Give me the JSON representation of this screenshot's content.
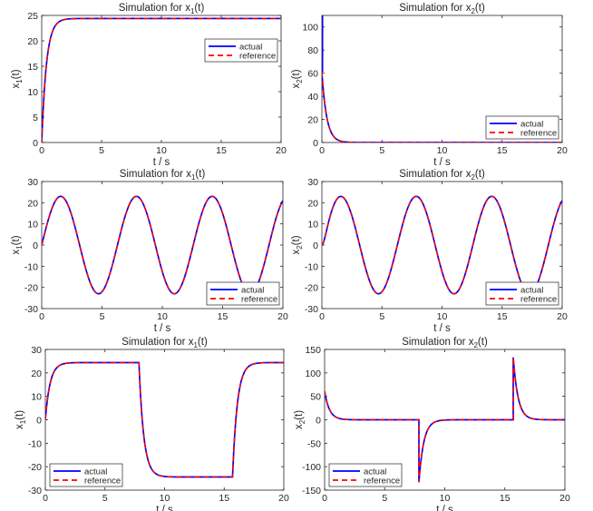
{
  "legend_labels": {
    "actual": "actual",
    "reference": "reference"
  },
  "colors": {
    "actual": "#0000ff",
    "reference": "#ff0000"
  },
  "chart_data": [
    {
      "type": "line",
      "id": "r1c1",
      "title": "Simulation  for  x",
      "title_sub": "1",
      "title_suffix": "(t)",
      "xlabel": "t / s",
      "ylabel": "x",
      "ylabel_sub": "1",
      "ylabel_suffix": "(t)",
      "xlim": [
        0,
        20
      ],
      "ylim": [
        0,
        25
      ],
      "xticks": [
        0,
        5,
        10,
        15,
        20
      ],
      "yticks": [
        0,
        5,
        10,
        15,
        20,
        25
      ],
      "legend_position": "upper-right",
      "signal": {
        "kind": "step",
        "amplitude": 24.4,
        "tau": 0.4
      },
      "series": [
        {
          "name": "actual",
          "key": "actual",
          "style": "solid"
        },
        {
          "name": "reference",
          "key": "reference",
          "style": "dashed"
        }
      ]
    },
    {
      "type": "line",
      "id": "r1c2",
      "title": "Simulation  for  x",
      "title_sub": "2",
      "title_suffix": "(t)",
      "xlabel": "t / s",
      "ylabel": "x",
      "ylabel_sub": "2",
      "ylabel_suffix": "(t)",
      "xlim": [
        0,
        20
      ],
      "ylim": [
        0,
        110
      ],
      "xticks": [
        0,
        5,
        10,
        15,
        20
      ],
      "yticks": [
        0,
        20,
        40,
        60,
        80,
        100
      ],
      "legend_position": "lower-right",
      "signal": {
        "kind": "decay",
        "amplitude": 61,
        "tau": 0.4,
        "spike": 110
      },
      "series": [
        {
          "name": "actual",
          "key": "actual",
          "style": "solid"
        },
        {
          "name": "reference",
          "key": "reference",
          "style": "dashed"
        }
      ]
    },
    {
      "type": "line",
      "id": "r2c1",
      "title": "Simulation  for  x",
      "title_sub": "1",
      "title_suffix": "(t)",
      "xlabel": "t / s",
      "ylabel": "x",
      "ylabel_sub": "1",
      "ylabel_suffix": "(t)",
      "xlim": [
        0,
        20
      ],
      "ylim": [
        -30,
        30
      ],
      "xticks": [
        0,
        5,
        10,
        15,
        20
      ],
      "yticks": [
        -30,
        -20,
        -10,
        0,
        10,
        20,
        30
      ],
      "legend_position": "lower-right",
      "signal": {
        "kind": "sine",
        "amplitude": 23,
        "period": 6.283,
        "phase": 0
      },
      "series": [
        {
          "name": "actual",
          "key": "actual",
          "style": "solid"
        },
        {
          "name": "reference",
          "key": "reference",
          "style": "dashed"
        }
      ]
    },
    {
      "type": "line",
      "id": "r2c2",
      "title": "Simulation  for  x",
      "title_sub": "2",
      "title_suffix": "(t)",
      "xlabel": "t / s",
      "ylabel": "x",
      "ylabel_sub": "2",
      "ylabel_suffix": "(t)",
      "xlim": [
        0,
        20
      ],
      "ylim": [
        -30,
        30
      ],
      "xticks": [
        0,
        5,
        10,
        15,
        20
      ],
      "yticks": [
        -30,
        -20,
        -10,
        0,
        10,
        20,
        30
      ],
      "legend_position": "lower-right",
      "signal": {
        "kind": "cosine",
        "amplitude": 23,
        "period": 6.283,
        "transient": 12
      },
      "series": [
        {
          "name": "actual",
          "key": "actual",
          "style": "solid"
        },
        {
          "name": "reference",
          "key": "reference",
          "style": "dashed"
        }
      ]
    },
    {
      "type": "line",
      "id": "r3c1",
      "title": "Simulation  for  x",
      "title_sub": "1",
      "title_suffix": "(t)",
      "xlabel": "t / s",
      "ylabel": "x",
      "ylabel_sub": "1",
      "ylabel_suffix": "(t)",
      "xlim": [
        0,
        20
      ],
      "ylim": [
        -30,
        30
      ],
      "xticks": [
        0,
        5,
        10,
        15,
        20
      ],
      "yticks": [
        -30,
        -20,
        -10,
        0,
        10,
        20,
        30
      ],
      "legend_position": "lower-left",
      "signal": {
        "kind": "square",
        "amplitude": 24.4,
        "tau": 0.4,
        "switch_times": [
          0,
          7.85,
          15.7
        ]
      },
      "series": [
        {
          "name": "actual",
          "key": "actual",
          "style": "solid"
        },
        {
          "name": "reference",
          "key": "reference",
          "style": "dashed"
        }
      ]
    },
    {
      "type": "line",
      "id": "r3c2",
      "title": "Simulation  for  x",
      "title_sub": "2",
      "title_suffix": "(t)",
      "xlabel": "t / s",
      "ylabel": "x",
      "ylabel_sub": "2",
      "ylabel_suffix": "(t)",
      "xlim": [
        0,
        20
      ],
      "ylim": [
        -150,
        150
      ],
      "xticks": [
        0,
        5,
        10,
        15,
        20
      ],
      "yticks": [
        -150,
        -100,
        -50,
        0,
        50,
        100,
        150
      ],
      "legend_position": "lower-left",
      "signal": {
        "kind": "pulses",
        "amplitude": 61,
        "tau": 0.4,
        "switch_times": [
          0,
          7.85,
          15.7
        ],
        "peaks": [
          61,
          -133,
          133
        ]
      },
      "series": [
        {
          "name": "actual",
          "key": "actual",
          "style": "solid"
        },
        {
          "name": "reference",
          "key": "reference",
          "style": "dashed"
        }
      ]
    }
  ]
}
